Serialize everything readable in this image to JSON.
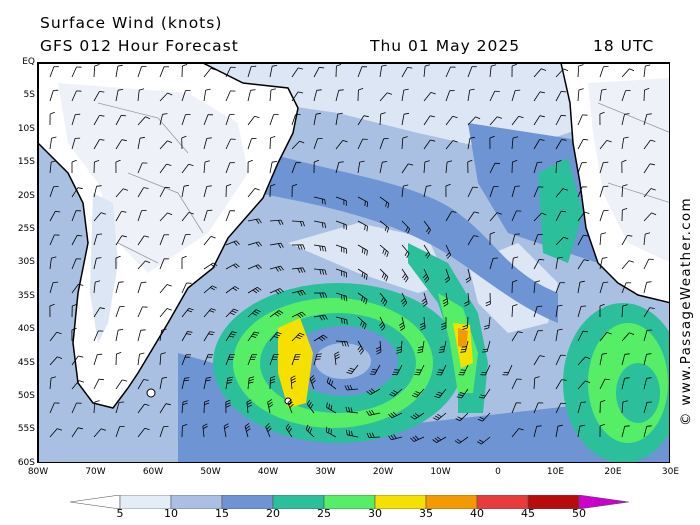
{
  "header": {
    "title": "Surface Wind (knots)",
    "model": "GFS 012 Hour Forecast",
    "date": "Thu 01 May 2025",
    "time": "18 UTC"
  },
  "credit": "© www.PassageWeather.com",
  "lat_labels": [
    "EQ",
    "5S",
    "10S",
    "15S",
    "20S",
    "25S",
    "30S",
    "35S",
    "40S",
    "45S",
    "50S",
    "55S",
    "60S"
  ],
  "lon_labels": [
    "80W",
    "70W",
    "60W",
    "50W",
    "40W",
    "30W",
    "20W",
    "10W",
    "0",
    "10E",
    "20E",
    "30E"
  ],
  "legend": {
    "labels": [
      "5",
      "10",
      "15",
      "20",
      "25",
      "30",
      "35",
      "40",
      "45",
      "50"
    ],
    "colors": [
      "#ffffff",
      "#e4ecf7",
      "#a9c0e2",
      "#6e94d4",
      "#2cbf9c",
      "#55ee66",
      "#f5e000",
      "#f39a00",
      "#e83c3c",
      "#b80c0c",
      "#cc00cc"
    ]
  },
  "colors": {
    "land": "#ffffff",
    "calm": "#dce6f4",
    "light": "#a9c0e2",
    "moderate": "#6e94d4",
    "fresh": "#2cbf9c",
    "strong": "#55ee66",
    "gale": "#f5e000",
    "storm": "#f39a00",
    "coast": "#000000"
  },
  "icons": [
    "wind-barb-icon"
  ]
}
